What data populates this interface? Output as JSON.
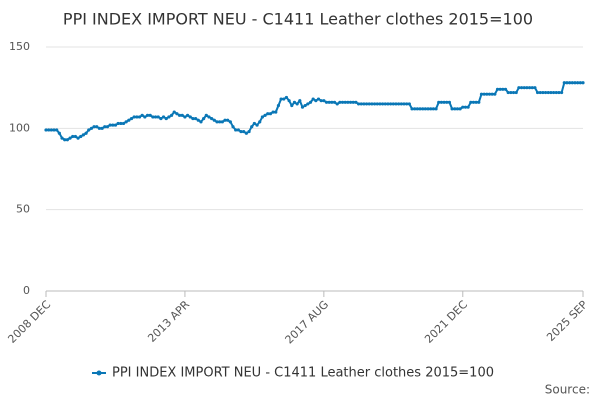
{
  "chart_data": {
    "type": "line",
    "title": "PPI INDEX IMPORT NEU - C1411 Leather clothes 2015=100",
    "source": "Source:",
    "categories": [
      "2008 DEC",
      null,
      null,
      null,
      null,
      null,
      null,
      null,
      null,
      null,
      null,
      null,
      null,
      null,
      null,
      null,
      null,
      null,
      null,
      null,
      null,
      null,
      null,
      null,
      null,
      null,
      null,
      null,
      null,
      null,
      null,
      null,
      null,
      null,
      null,
      null,
      null,
      null,
      null,
      null,
      null,
      null,
      null,
      null,
      null,
      null,
      null,
      null,
      null,
      null,
      null,
      null,
      "2013 APR",
      null,
      null,
      null,
      null,
      null,
      null,
      null,
      null,
      null,
      null,
      null,
      null,
      null,
      null,
      null,
      null,
      null,
      null,
      null,
      null,
      null,
      null,
      null,
      null,
      null,
      null,
      null,
      null,
      null,
      null,
      null,
      null,
      null,
      null,
      null,
      null,
      null,
      null,
      null,
      null,
      null,
      null,
      null,
      null,
      null,
      null,
      null,
      null,
      null,
      null,
      null,
      "2017 AUG",
      null,
      null,
      null,
      null,
      null,
      null,
      null,
      null,
      null,
      null,
      null,
      null,
      null,
      null,
      null,
      null,
      null,
      null,
      null,
      null,
      null,
      null,
      null,
      null,
      null,
      null,
      null,
      null,
      null,
      null,
      null,
      null,
      null,
      null,
      null,
      null,
      null,
      null,
      null,
      null,
      null,
      null,
      null,
      null,
      null,
      null,
      null,
      null,
      null,
      null,
      null,
      "2021 DEC",
      null,
      null,
      null,
      null,
      null,
      null,
      null,
      null,
      null,
      null,
      null,
      null,
      null,
      null,
      null,
      null,
      null,
      null,
      null,
      null,
      null,
      null,
      null,
      null,
      null,
      null,
      null,
      null,
      null,
      null,
      null,
      null,
      null,
      null,
      null,
      null,
      null,
      null,
      null,
      null,
      null,
      null,
      null,
      null,
      "2025 SEP"
    ],
    "series": [
      {
        "name": "PPI INDEX IMPORT NEU - C1411 Leather clothes 2015=100",
        "color": "#0a77b6",
        "values": [
          99,
          99,
          99,
          99,
          99,
          97,
          94,
          93,
          93,
          94,
          95,
          95,
          94,
          95,
          96,
          97,
          99,
          100,
          101,
          101,
          100,
          100,
          101,
          101,
          102,
          102,
          102,
          103,
          103,
          103,
          104,
          105,
          106,
          107,
          107,
          107,
          108,
          107,
          108,
          108,
          107,
          107,
          107,
          106,
          107,
          106,
          107,
          108,
          110,
          109,
          108,
          108,
          107,
          108,
          107,
          106,
          106,
          105,
          104,
          106,
          108,
          107,
          106,
          105,
          104,
          104,
          104,
          105,
          105,
          104,
          101,
          99,
          99,
          98,
          98,
          97,
          98,
          101,
          103,
          102,
          104,
          107,
          108,
          109,
          109,
          110,
          110,
          114,
          118,
          118,
          119,
          117,
          114,
          116,
          115,
          117,
          113,
          114,
          115,
          116,
          118,
          117,
          118,
          117,
          117,
          116,
          116,
          116,
          116,
          115,
          116,
          116,
          116,
          116,
          116,
          116,
          116,
          115,
          115,
          115,
          115,
          115,
          115,
          115,
          115,
          115,
          115,
          115,
          115,
          115,
          115,
          115,
          115,
          115,
          115,
          115,
          115,
          112,
          112,
          112,
          112,
          112,
          112,
          112,
          112,
          112,
          112,
          116,
          116,
          116,
          116,
          116,
          112,
          112,
          112,
          112,
          113,
          113,
          113,
          116,
          116,
          116,
          116,
          121,
          121,
          121,
          121,
          121,
          121,
          124,
          124,
          124,
          124,
          122,
          122,
          122,
          122,
          125,
          125,
          125,
          125,
          125,
          125,
          125,
          122,
          122,
          122,
          122,
          122,
          122,
          122,
          122,
          122,
          122,
          128,
          128,
          128,
          128,
          128,
          128,
          128,
          128
        ]
      }
    ],
    "ylim": [
      0,
      150
    ],
    "yticks": [
      0,
      50,
      100,
      150
    ],
    "grid": true,
    "legend": "bottom"
  }
}
